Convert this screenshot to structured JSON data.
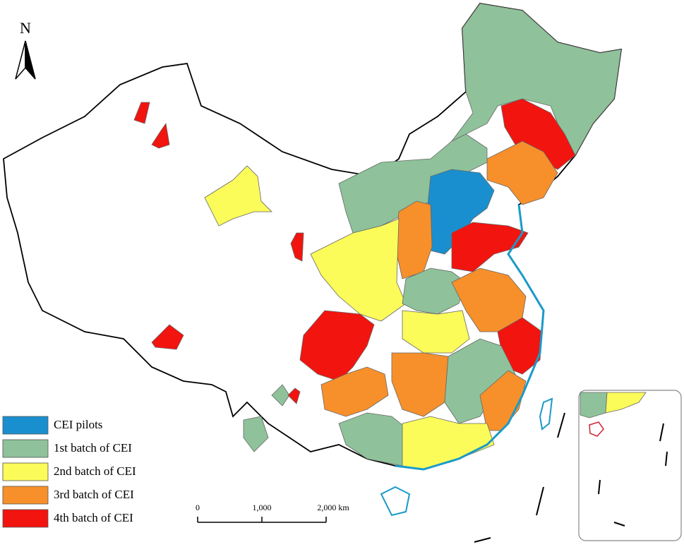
{
  "north_arrow": {
    "label": "N"
  },
  "legend": {
    "items": [
      {
        "label": "CEI pilots",
        "color": "#1a8fcf"
      },
      {
        "label": "1st batch of CEI",
        "color": "#8fc29a"
      },
      {
        "label": "2nd batch of CEI",
        "color": "#fbfb5a"
      },
      {
        "label": "3rd batch of CEI",
        "color": "#f7902a"
      },
      {
        "label": "4th batch of CEI",
        "color": "#f2140f"
      }
    ]
  },
  "scale_bar": {
    "ticks": [
      {
        "value": 0,
        "label": "0"
      },
      {
        "value": 1000,
        "label": "1,000"
      },
      {
        "value": 2000,
        "label": "2,000 km"
      }
    ]
  }
}
